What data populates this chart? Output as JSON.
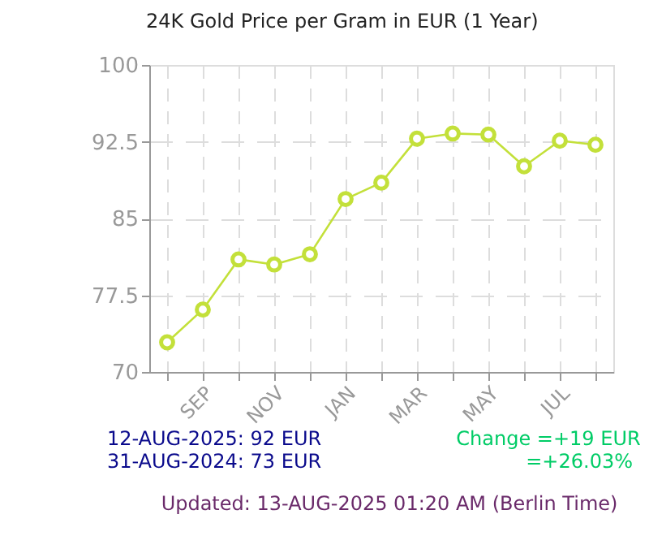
{
  "chart_data": {
    "type": "line",
    "title": "24K Gold Price per Gram in EUR (1 Year)",
    "categories": [
      null,
      "SEP",
      null,
      "NOV",
      null,
      "JAN",
      null,
      "MAR",
      null,
      "MAY",
      null,
      "JUL",
      null
    ],
    "series": [
      {
        "color": "#c3e03a",
        "values": [
          72.9,
          76.1,
          81.0,
          80.5,
          81.5,
          86.9,
          88.5,
          92.8,
          93.3,
          93.2,
          90.1,
          92.6,
          92.2
        ]
      }
    ],
    "ylim": [
      70,
      100
    ],
    "yticks": [
      70,
      77.5,
      85,
      92.5,
      100
    ],
    "grid": true,
    "marker": "circle",
    "line_style": "solid",
    "annotations": [
      "12-AUG-2025: 92 EUR",
      "31-AUG-2024: 73 EUR",
      "Change =+19 EUR",
      "=+26.03%",
      "Updated: 13-AUG-2025 01:20 AM (Berlin Time)"
    ]
  }
}
